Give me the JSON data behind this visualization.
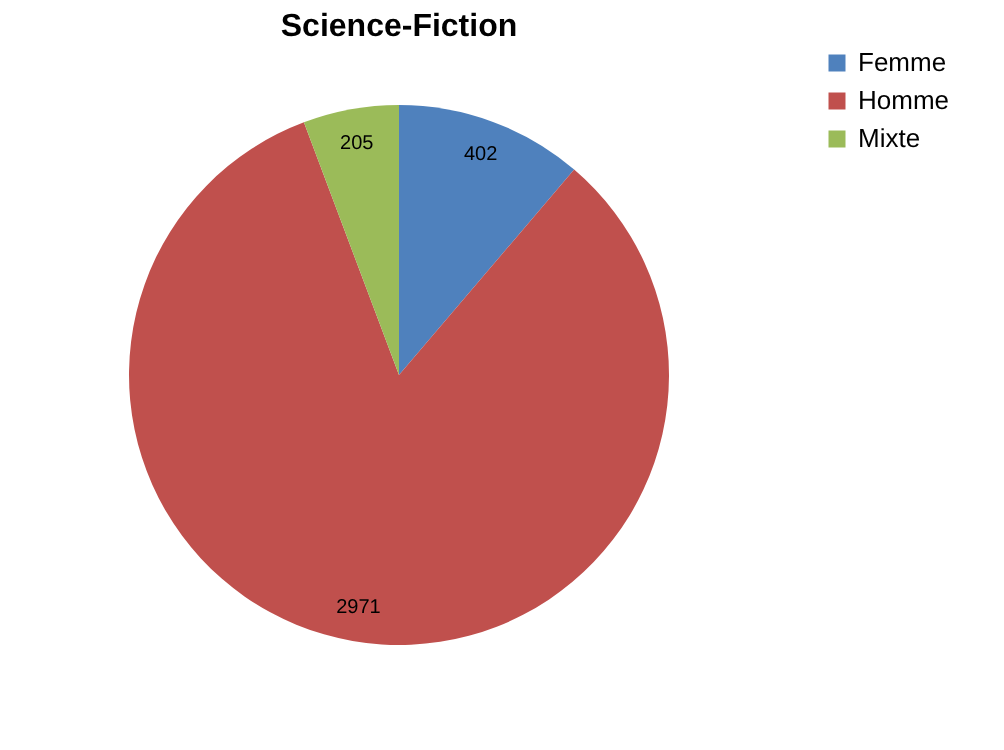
{
  "chart_data": {
    "type": "pie",
    "title": "Science-Fiction",
    "categories": [
      "Femme",
      "Homme",
      "Mixte"
    ],
    "values": [
      402,
      2971,
      205
    ],
    "colors": [
      "#4f81bd",
      "#c0504d",
      "#9bbb59"
    ],
    "data_labels": true,
    "legend": "right"
  }
}
